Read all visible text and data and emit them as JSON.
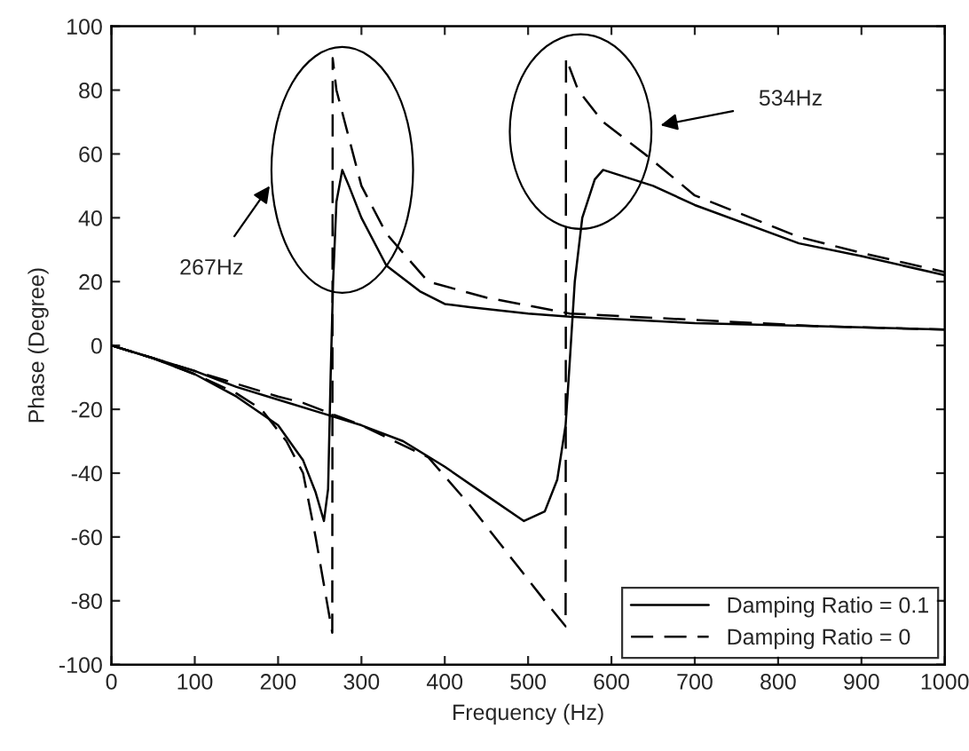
{
  "chart_data": {
    "type": "line",
    "xlabel": "Frequency (Hz)",
    "ylabel": "Phase (Degree)",
    "xlim": [
      0,
      1000
    ],
    "ylim": [
      -100,
      100
    ],
    "xticks": [
      0,
      100,
      200,
      300,
      400,
      500,
      600,
      700,
      800,
      900,
      1000
    ],
    "yticks": [
      -100,
      -80,
      -60,
      -40,
      -20,
      0,
      20,
      40,
      60,
      80,
      100
    ],
    "grid": false,
    "legend": "bottom right",
    "marker": "none",
    "annotations": [
      "267Hz",
      "534Hz"
    ],
    "series": [
      {
        "name": "Damping Ratio = 0.1",
        "color": "#000000",
        "line_style": "solid",
        "x": [
          0,
          50,
          100,
          150,
          200,
          230,
          245,
          255,
          260,
          263,
          266,
          270,
          277,
          285,
          300,
          330,
          370,
          400,
          430,
          500,
          550,
          700,
          850,
          1000
        ],
        "values": [
          0,
          -4,
          -9,
          -16,
          -25,
          -36,
          -46,
          -55,
          -45,
          -10,
          20,
          45,
          55,
          50,
          40,
          25,
          17,
          13,
          12,
          10,
          9,
          7,
          6,
          5
        ]
      },
      {
        "color": "#000000",
        "line_style": "solid",
        "x": [
          0,
          50,
          100,
          150,
          200,
          250,
          300,
          350,
          400,
          450,
          495,
          520,
          535,
          545,
          550,
          556,
          565,
          580,
          590,
          650,
          700,
          825,
          900,
          1000
        ],
        "values": [
          0,
          -4,
          -8,
          -13,
          -17,
          -21,
          -25,
          -30,
          -38,
          -47,
          -55,
          -52,
          -42,
          -25,
          -5,
          20,
          40,
          52,
          55,
          50,
          44,
          32,
          28,
          22
        ]
      },
      {
        "name": "Damping Ratio = 0",
        "color": "#000000",
        "line_style": "dashed",
        "x": [
          0,
          50,
          100,
          150,
          180,
          210,
          230,
          245,
          255,
          265,
          265.5,
          270,
          280,
          300,
          330,
          380,
          450,
          550,
          700,
          850,
          1000
        ],
        "values": [
          0,
          -4,
          -9,
          -15,
          -20,
          -30,
          -40,
          -60,
          -75,
          -90,
          90,
          80,
          70,
          50,
          35,
          20,
          15,
          10,
          8,
          6,
          5
        ]
      },
      {
        "color": "#000000",
        "line_style": "dashed",
        "x": [
          0,
          50,
          100,
          150,
          200,
          230,
          300,
          380,
          430,
          490,
          520,
          545,
          545.5,
          560,
          590,
          640,
          700,
          825,
          900,
          1000
        ],
        "values": [
          0,
          -4,
          -8,
          -12,
          -16,
          -18,
          -25,
          -35,
          -50,
          -70,
          -80,
          -88,
          90,
          80,
          70,
          60,
          47,
          34,
          29,
          23
        ]
      }
    ]
  }
}
